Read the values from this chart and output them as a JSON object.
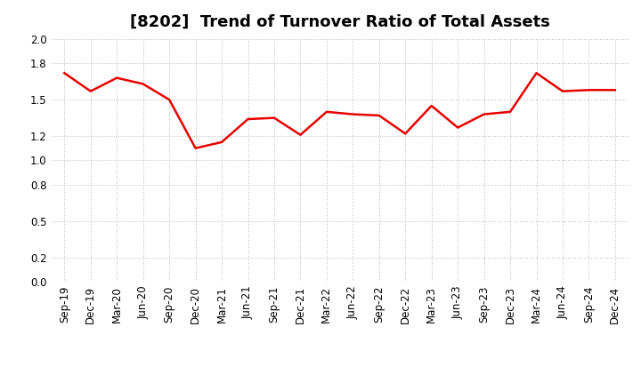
{
  "title": "[8202]  Trend of Turnover Ratio of Total Assets",
  "labels": [
    "Sep-19",
    "Dec-19",
    "Mar-20",
    "Jun-20",
    "Sep-20",
    "Dec-20",
    "Mar-21",
    "Jun-21",
    "Sep-21",
    "Dec-21",
    "Mar-22",
    "Jun-22",
    "Sep-22",
    "Dec-22",
    "Mar-23",
    "Jun-23",
    "Sep-23",
    "Dec-23",
    "Mar-24",
    "Jun-24",
    "Sep-24",
    "Dec-24"
  ],
  "values": [
    1.72,
    1.57,
    1.68,
    1.63,
    1.5,
    1.1,
    1.15,
    1.34,
    1.35,
    1.21,
    1.4,
    1.38,
    1.37,
    1.22,
    1.45,
    1.27,
    1.38,
    1.4,
    1.72,
    1.57,
    1.58,
    1.58
  ],
  "line_color": "#e80000",
  "background_color": "#ffffff",
  "ylim": [
    0.0,
    2.0
  ],
  "yticks": [
    0.0,
    0.2,
    0.5,
    0.8,
    1.0,
    1.2,
    1.5,
    1.8,
    2.0
  ],
  "title_fontsize": 13,
  "tick_fontsize": 8.5,
  "grid_color": "#bbbbbb",
  "line_width": 1.8
}
